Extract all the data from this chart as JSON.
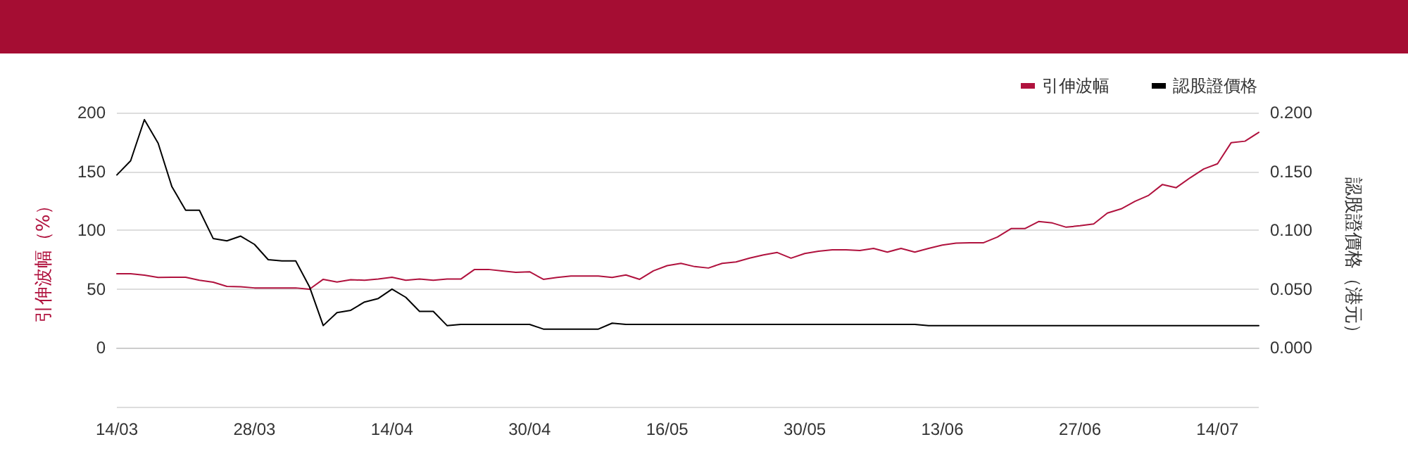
{
  "chart_data": {
    "type": "line",
    "categories": [
      "14/03",
      null,
      null,
      null,
      null,
      null,
      null,
      null,
      null,
      null,
      "28/03",
      null,
      null,
      null,
      null,
      null,
      null,
      null,
      null,
      null,
      "14/04",
      null,
      null,
      null,
      null,
      null,
      null,
      null,
      null,
      null,
      "30/04",
      null,
      null,
      null,
      null,
      null,
      null,
      null,
      null,
      null,
      "16/05",
      null,
      null,
      null,
      null,
      null,
      null,
      null,
      null,
      null,
      "30/05",
      null,
      null,
      null,
      null,
      null,
      null,
      null,
      null,
      null,
      "13/06",
      null,
      null,
      null,
      null,
      null,
      null,
      null,
      null,
      null,
      "27/06",
      null,
      null,
      null,
      null,
      null,
      null,
      null,
      null,
      null,
      "14/07",
      null,
      null,
      null
    ],
    "series": [
      {
        "name": "引伸波幅",
        "color": "#b0123e",
        "values": [
          63.1,
          63,
          61.9,
          59.9,
          60,
          60,
          57.5,
          55.9,
          52.3,
          52,
          51,
          51,
          51,
          51,
          49.9,
          58.3,
          56,
          58,
          57.5,
          58.5,
          60,
          57.5,
          58.5,
          57.5,
          58.5,
          58.5,
          66.7,
          66.7,
          65.5,
          64.3,
          64.7,
          58.3,
          59.9,
          61.1,
          61.1,
          61.1,
          59.9,
          62,
          58.3,
          65.5,
          69.9,
          71.9,
          69.1,
          67.9,
          71.9,
          73.1,
          76.3,
          79,
          81.1,
          76.3,
          80.2,
          82.2,
          83.4,
          83.4,
          82.8,
          84.6,
          81.4,
          84.6,
          81.4,
          84.6,
          87.4,
          89,
          89.4,
          89.4,
          94.2,
          101.4,
          101.4,
          107.4,
          106.2,
          102.6,
          103.8,
          105.4,
          114.6,
          118.2,
          124.6,
          129.7,
          138.9,
          136.2,
          144.5,
          152.1,
          156.5,
          174.5,
          175.7,
          183.2
        ]
      },
      {
        "name": "認股證價格",
        "color": "#000000",
        "axis": "y2",
        "values": [
          0.147,
          0.159,
          0.194,
          0.174,
          0.137,
          0.117,
          0.117,
          0.093,
          0.091,
          0.095,
          0.088,
          0.075,
          0.074,
          0.074,
          0.052,
          0.019,
          0.03,
          0.032,
          0.039,
          0.042,
          0.05,
          0.043,
          0.031,
          0.031,
          0.019,
          0.02,
          0.02,
          0.02,
          0.02,
          0.02,
          0.02,
          0.016,
          0.016,
          0.016,
          0.016,
          0.016,
          0.021,
          0.02,
          0.02,
          0.02,
          0.02,
          0.02,
          0.02,
          0.02,
          0.02,
          0.02,
          0.02,
          0.02,
          0.02,
          0.02,
          0.02,
          0.02,
          0.02,
          0.02,
          0.02,
          0.02,
          0.02,
          0.02,
          0.02,
          0.019,
          0.019,
          0.019,
          0.019,
          0.019,
          0.019,
          0.019,
          0.019,
          0.019,
          0.019,
          0.019,
          0.019,
          0.019,
          0.019,
          0.019,
          0.019,
          0.019,
          0.019,
          0.019,
          0.019,
          0.019,
          0.019,
          0.019,
          0.019,
          0.019
        ]
      }
    ],
    "ylabel": "引伸波幅（%）",
    "y2label": "認股證價格（港元）",
    "ylim": [
      -50,
      200
    ],
    "yticks": [
      {
        "value": -50,
        "label": null
      },
      0,
      50,
      100,
      150,
      200
    ],
    "y2lim": [
      -0.05,
      0.2
    ],
    "y2ticks": [
      {
        "value": -0.05,
        "label": null
      },
      {
        "value": 0,
        "label": "0.000"
      },
      {
        "value": 0.05,
        "label": "0.050"
      },
      {
        "value": 0.1,
        "label": "0.100"
      },
      {
        "value": 0.15,
        "label": "0.150"
      },
      {
        "value": 0.2,
        "label": "0.200"
      }
    ],
    "grid": "y",
    "legend": "top right",
    "marker": "none",
    "line_style": "solid"
  }
}
